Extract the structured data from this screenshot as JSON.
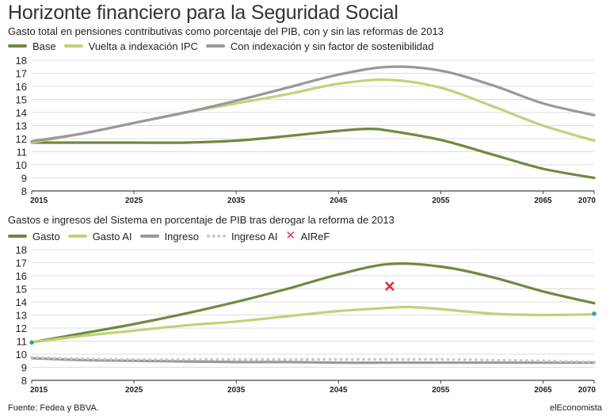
{
  "page": {
    "title": "Horizonte financiero para la Seguridad Social",
    "source": "Fuente: Fedea y BBVA.",
    "brand": "elEconomista"
  },
  "colors": {
    "dark_green": "#6e8a3d",
    "light_green": "#bfd27a",
    "gray": "#999999",
    "light_gray_dots": "#c8c8c8",
    "red_marker": "#d9343a",
    "teal_marker": "#3a9dbf"
  },
  "chart_data": [
    {
      "type": "line",
      "title": "Gasto total en pensiones contributivas como porcentaje del PIB, con y sin las reformas de 2013",
      "xlabel": "",
      "ylabel": "",
      "xlim": [
        2015,
        2070
      ],
      "ylim": [
        8,
        18
      ],
      "x_ticks": [
        2015,
        2025,
        2035,
        2045,
        2055,
        2065,
        2070
      ],
      "y_ticks": [
        8,
        9,
        10,
        11,
        12,
        13,
        14,
        15,
        16,
        17,
        18
      ],
      "grid": "horizontal",
      "legend_position": "top-left",
      "series": [
        {
          "name": "Base",
          "color": "#6e8a3d",
          "style": "solid",
          "x": [
            2015,
            2020,
            2025,
            2030,
            2035,
            2040,
            2045,
            2048,
            2050,
            2055,
            2060,
            2065,
            2070
          ],
          "y": [
            11.7,
            11.7,
            11.7,
            11.7,
            11.85,
            12.2,
            12.6,
            12.75,
            12.6,
            11.9,
            10.8,
            9.7,
            9.0
          ]
        },
        {
          "name": "Vuelta a indexación IPC",
          "color": "#bfd27a",
          "style": "solid",
          "x": [
            2015,
            2020,
            2025,
            2030,
            2035,
            2040,
            2045,
            2050,
            2055,
            2060,
            2065,
            2070
          ],
          "y": [
            11.7,
            12.4,
            13.2,
            14.0,
            14.7,
            15.4,
            16.2,
            16.5,
            15.9,
            14.5,
            13.0,
            11.85
          ]
        },
        {
          "name": "Con indexación y sin factor de sostenibilidad",
          "color": "#999999",
          "style": "solid",
          "x": [
            2015,
            2020,
            2025,
            2030,
            2035,
            2040,
            2045,
            2050,
            2055,
            2060,
            2065,
            2070
          ],
          "y": [
            11.8,
            12.4,
            13.2,
            14.0,
            14.9,
            15.9,
            16.9,
            17.5,
            17.2,
            16.1,
            14.7,
            13.8
          ]
        }
      ]
    },
    {
      "type": "line",
      "title": "Gastos e ingresos del Sistema en porcentaje de PIB tras derogar la reforma de 2013",
      "xlabel": "",
      "ylabel": "",
      "xlim": [
        2015,
        2070
      ],
      "ylim": [
        8,
        18
      ],
      "x_ticks": [
        2015,
        2025,
        2035,
        2045,
        2055,
        2065,
        2070
      ],
      "y_ticks": [
        8,
        9,
        10,
        11,
        12,
        13,
        14,
        15,
        16,
        17,
        18
      ],
      "grid": "horizontal",
      "legend_position": "top-left",
      "series": [
        {
          "name": "Gasto",
          "color": "#6e8a3d",
          "style": "solid",
          "x": [
            2015,
            2020,
            2025,
            2030,
            2035,
            2040,
            2045,
            2050,
            2055,
            2060,
            2065,
            2070
          ],
          "y": [
            10.9,
            11.6,
            12.3,
            13.1,
            14.0,
            15.0,
            16.1,
            16.9,
            16.7,
            15.9,
            14.8,
            13.9
          ]
        },
        {
          "name": "Gasto AI",
          "color": "#bfd27a",
          "style": "solid",
          "x": [
            2015,
            2020,
            2025,
            2030,
            2035,
            2040,
            2045,
            2050,
            2052,
            2055,
            2060,
            2065,
            2070
          ],
          "y": [
            10.9,
            11.4,
            11.8,
            12.2,
            12.5,
            12.9,
            13.3,
            13.55,
            13.6,
            13.45,
            13.1,
            13.0,
            13.05
          ]
        },
        {
          "name": "Ingreso",
          "color": "#999999",
          "style": "solid",
          "x": [
            2015,
            2020,
            2025,
            2030,
            2035,
            2040,
            2045,
            2050,
            2055,
            2060,
            2065,
            2070
          ],
          "y": [
            9.7,
            9.55,
            9.5,
            9.45,
            9.4,
            9.4,
            9.35,
            9.35,
            9.35,
            9.35,
            9.35,
            9.35
          ]
        },
        {
          "name": "Ingreso AI",
          "color": "#c8c8c8",
          "style": "dotted",
          "x": [
            2015,
            2020,
            2025,
            2030,
            2035,
            2040,
            2045,
            2050,
            2055,
            2060,
            2065,
            2070
          ],
          "y": [
            9.75,
            9.65,
            9.6,
            9.6,
            9.6,
            9.6,
            9.6,
            9.6,
            9.6,
            9.55,
            9.5,
            9.4
          ]
        }
      ],
      "markers": [
        {
          "name": "AIReF",
          "symbol": "cross",
          "color": "#d9343a",
          "x": 2050,
          "y": 15.2
        },
        {
          "name": "",
          "symbol": "dot",
          "color": "#3a9dbf",
          "x": 2015,
          "y": 10.9
        },
        {
          "name": "",
          "symbol": "dot",
          "color": "#3a9dbf",
          "x": 2070,
          "y": 13.1
        }
      ]
    }
  ]
}
